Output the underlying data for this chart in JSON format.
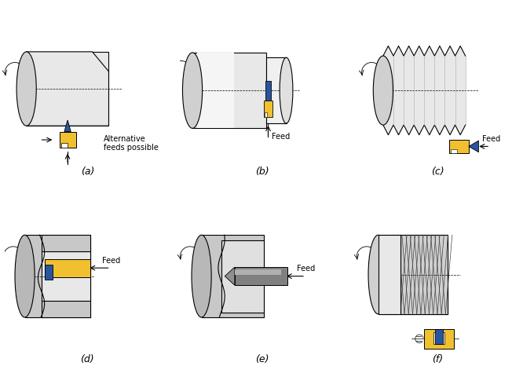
{
  "title": "",
  "background": "#ffffff",
  "border_color": "#000000",
  "cylinder_fill": "#e8e8e8",
  "cylinder_grad_fill": "#f5f5f5",
  "tool_yellow": "#f0c030",
  "tool_blue": "#2855a0",
  "tool_gray": "#909090",
  "label_a": "(a)",
  "label_b": "(b)",
  "label_c": "(c)",
  "label_d": "(d)",
  "label_e": "(e)",
  "label_f": "(f)",
  "text_alt_feed": "Alternative\nfeeds possible",
  "text_feed": "Feed",
  "font_size_label": 9,
  "font_size_annot": 7
}
